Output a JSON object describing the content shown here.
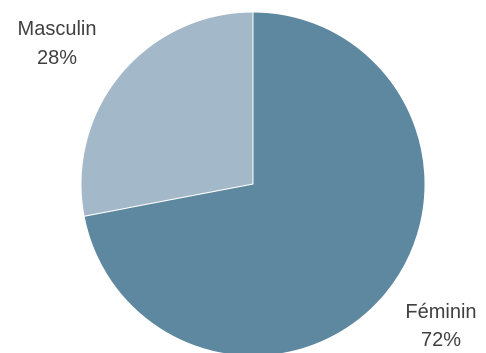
{
  "chart_data": {
    "type": "pie",
    "slices": [
      {
        "label": "Féminin",
        "value": 72,
        "value_label": "72%",
        "color": "#5e87a0"
      },
      {
        "label": "Masculin",
        "value": 28,
        "value_label": "28%",
        "color": "#a3b8c8"
      }
    ],
    "start_angle": "12 o'clock",
    "direction": "clockwise",
    "legend": "none",
    "label_position": "outside"
  }
}
